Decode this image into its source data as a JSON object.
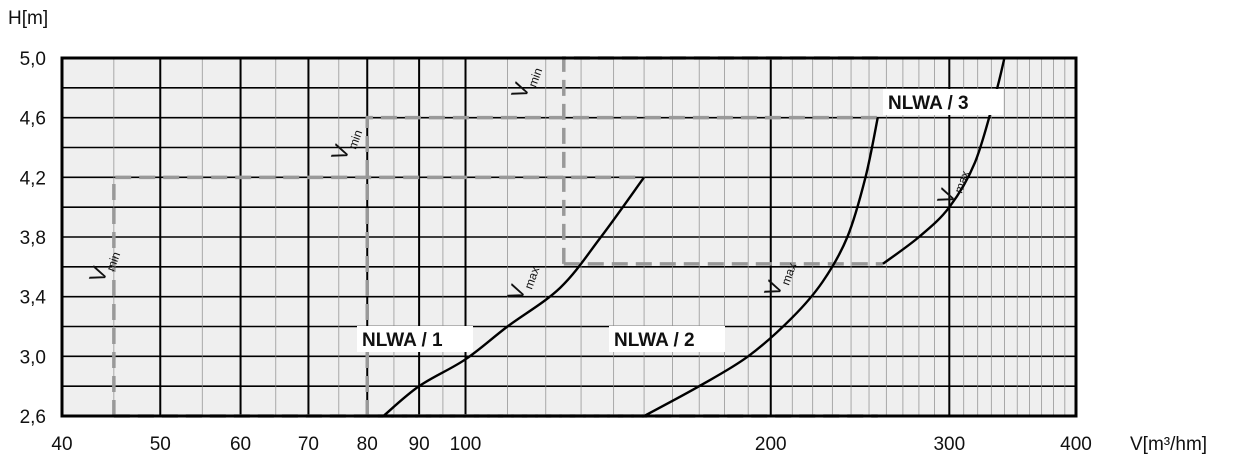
{
  "chart_data": {
    "type": "line",
    "xlabel": "V[m³/hm]",
    "ylabel": "H[m]",
    "x_scale": "log",
    "xlim": [
      40,
      400
    ],
    "ylim": [
      2.6,
      5.0
    ],
    "x_tick_labels": [
      "40",
      "50",
      "60",
      "70",
      "80",
      "90",
      "100",
      "200",
      "300",
      "400"
    ],
    "y_tick_labels": [
      "2,6",
      "3,0",
      "3,4",
      "3,8",
      "4,2",
      "4,6",
      "5,0"
    ],
    "grid": true,
    "series": [
      {
        "name": "NLWA / 1",
        "vmin": 45,
        "vmin_label": "V",
        "vmin_sub": "min",
        "vmax_label": "V",
        "vmax_sub": "max",
        "box": {
          "x0": 45,
          "x1": 150,
          "y0": 2.6,
          "y1": 4.2
        },
        "vmax_curve": [
          [
            83,
            2.6
          ],
          [
            90,
            2.8
          ],
          [
            100,
            2.98
          ],
          [
            110,
            3.2
          ],
          [
            124,
            3.46
          ],
          [
            136,
            3.8
          ],
          [
            150,
            4.2
          ]
        ]
      },
      {
        "name": "NLWA / 2",
        "vmin": 80,
        "vmin_label": "V",
        "vmin_sub": "min",
        "vmax_label": "V",
        "vmax_sub": "max",
        "box": {
          "x0": 80,
          "x1": 255,
          "y0": 2.6,
          "y1": 4.6
        },
        "vmax_curve": [
          [
            150,
            2.6
          ],
          [
            170,
            2.8
          ],
          [
            190,
            3.0
          ],
          [
            210,
            3.26
          ],
          [
            225,
            3.5
          ],
          [
            238,
            3.8
          ],
          [
            248,
            4.2
          ],
          [
            255,
            4.6
          ]
        ]
      },
      {
        "name": "NLWA / 3",
        "vmin": 125,
        "vmin_label": "V",
        "vmin_sub": "min",
        "vmax_label": "V",
        "vmax_sub": "max",
        "box": {
          "x0": 125,
          "x1": 258,
          "y0": 3.62,
          "y1": 5.0
        },
        "vmax_curve": [
          [
            258,
            3.62
          ],
          [
            280,
            3.8
          ],
          [
            300,
            4.0
          ],
          [
            318,
            4.3
          ],
          [
            333,
            4.75
          ],
          [
            340,
            5.0
          ]
        ]
      }
    ]
  }
}
